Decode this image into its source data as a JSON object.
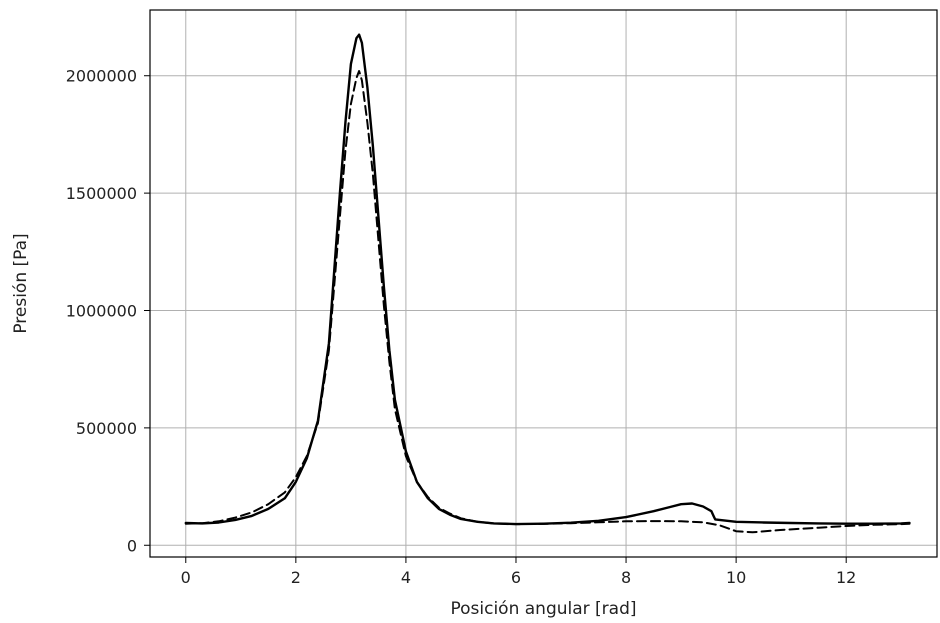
{
  "chart_data": {
    "type": "line",
    "title": "",
    "xlabel": "Posición angular [rad]",
    "ylabel": "Presión [Pa]",
    "xlim": [
      -0.65,
      13.65
    ],
    "ylim": [
      -50000,
      2280000
    ],
    "xticks": [
      0,
      2,
      4,
      6,
      8,
      10,
      12
    ],
    "yticks": [
      0,
      500000,
      1000000,
      1500000,
      2000000
    ],
    "grid": true,
    "legend": "none",
    "series": [
      {
        "style": "solid",
        "color": "#000000",
        "x": [
          0,
          0.3,
          0.6,
          0.9,
          1.2,
          1.5,
          1.8,
          2.0,
          2.2,
          2.4,
          2.6,
          2.8,
          2.9,
          3.0,
          3.1,
          3.15,
          3.2,
          3.3,
          3.4,
          3.5,
          3.6,
          3.7,
          3.8,
          4.0,
          4.2,
          4.4,
          4.6,
          4.8,
          5.0,
          5.3,
          5.6,
          6.0,
          6.5,
          7.0,
          7.5,
          8.0,
          8.5,
          8.8,
          9.0,
          9.2,
          9.4,
          9.55,
          9.6,
          9.62,
          10.0,
          10.5,
          11.0,
          11.5,
          12.0,
          12.5,
          13.0,
          13.15
        ],
        "y": [
          95000,
          93000,
          97000,
          108000,
          125000,
          155000,
          200000,
          270000,
          370000,
          530000,
          860000,
          1500000,
          1800000,
          2050000,
          2160000,
          2175000,
          2140000,
          1950000,
          1700000,
          1400000,
          1100000,
          830000,
          620000,
          400000,
          270000,
          200000,
          155000,
          130000,
          112000,
          100000,
          93000,
          90000,
          92000,
          96000,
          104000,
          120000,
          145000,
          163000,
          175000,
          178000,
          165000,
          145000,
          120000,
          110000,
          100000,
          97000,
          95000,
          93000,
          92000,
          92000,
          93000,
          95000
        ]
      },
      {
        "style": "dashed",
        "color": "#000000",
        "x": [
          0,
          0.3,
          0.6,
          0.9,
          1.2,
          1.5,
          1.8,
          2.0,
          2.2,
          2.4,
          2.6,
          2.8,
          2.9,
          3.0,
          3.1,
          3.15,
          3.2,
          3.3,
          3.4,
          3.5,
          3.6,
          3.7,
          3.8,
          4.0,
          4.2,
          4.4,
          4.6,
          4.8,
          5.0,
          5.3,
          5.6,
          6.0,
          6.5,
          7.0,
          7.5,
          8.0,
          8.5,
          9.0,
          9.4,
          9.7,
          10.0,
          10.3,
          10.8,
          11.5,
          12.0,
          12.5,
          13.0,
          13.15
        ],
        "y": [
          92000,
          94000,
          102000,
          118000,
          140000,
          175000,
          225000,
          290000,
          380000,
          520000,
          830000,
          1400000,
          1680000,
          1880000,
          1990000,
          2020000,
          1980000,
          1800000,
          1580000,
          1300000,
          1020000,
          780000,
          580000,
          380000,
          270000,
          205000,
          160000,
          135000,
          115000,
          100000,
          93000,
          90000,
          91000,
          94000,
          98000,
          102000,
          103000,
          102000,
          98000,
          85000,
          60000,
          55000,
          65000,
          75000,
          82000,
          87000,
          90000,
          92000
        ]
      }
    ]
  }
}
